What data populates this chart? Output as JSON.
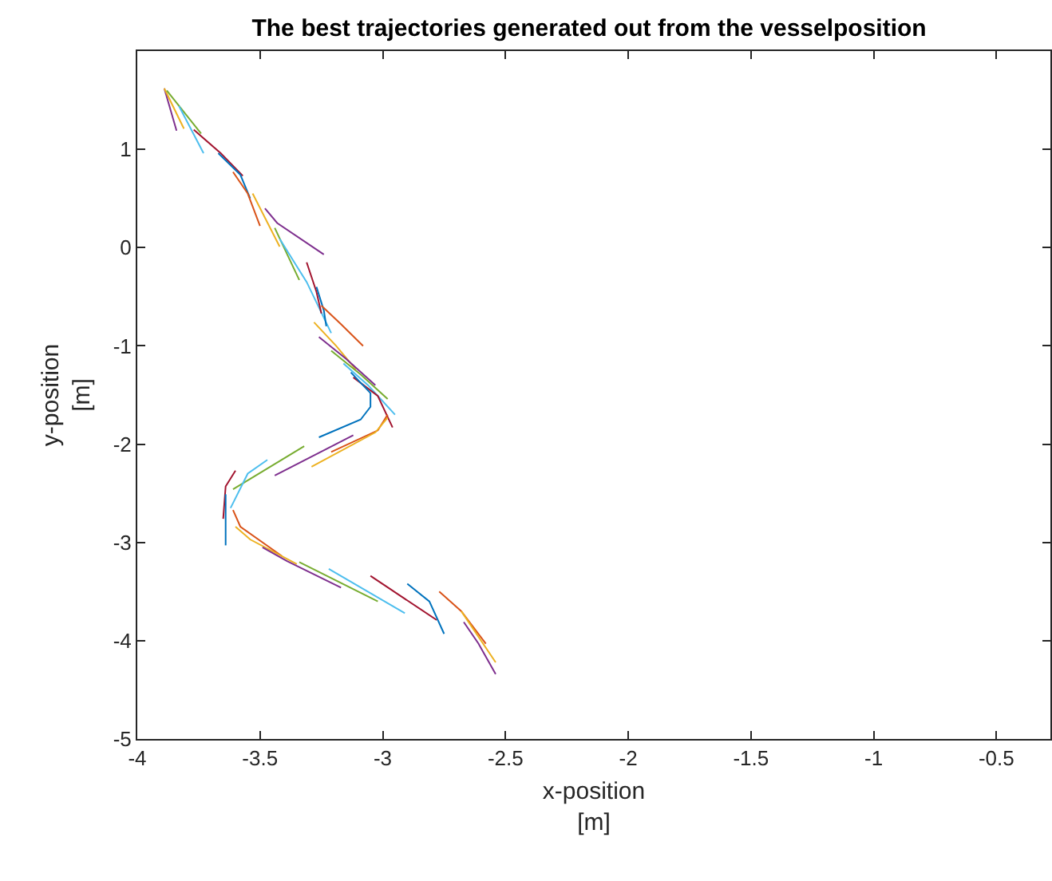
{
  "chart_data": {
    "type": "line",
    "title": "The best trajectories generated out from the vesselposition",
    "xlabel": "x-position\n[m]",
    "ylabel": "y-position\n[m]",
    "xlim": [
      -4,
      -0.28
    ],
    "ylim": [
      -5,
      2
    ],
    "xticks": [
      -4,
      -3.5,
      -3,
      -2.5,
      -2,
      -1.5,
      -1,
      -0.5
    ],
    "yticks": [
      -5,
      -4,
      -3,
      -2,
      -1,
      0,
      1
    ],
    "grid": false,
    "series": [
      {
        "color": "#7e2f8e",
        "x": [
          -3.89,
          -3.84
        ],
        "values": [
          1.62,
          1.19
        ]
      },
      {
        "color": "#edb120",
        "x": [
          -3.89,
          -3.81
        ],
        "values": [
          1.62,
          1.21
        ]
      },
      {
        "color": "#77ac30",
        "x": [
          -3.88,
          -3.74
        ],
        "values": [
          1.6,
          1.16
        ]
      },
      {
        "color": "#4dbeee",
        "x": [
          -3.83,
          -3.73
        ],
        "values": [
          1.44,
          0.96
        ]
      },
      {
        "color": "#a2142f",
        "x": [
          -3.77,
          -3.66,
          -3.57
        ],
        "values": [
          1.2,
          0.96,
          0.73
        ]
      },
      {
        "color": "#0072bd",
        "x": [
          -3.67,
          -3.58,
          -3.54
        ],
        "values": [
          0.96,
          0.74,
          0.5
        ]
      },
      {
        "color": "#d95319",
        "x": [
          -3.61,
          -3.55,
          -3.5
        ],
        "values": [
          0.77,
          0.55,
          0.22
        ]
      },
      {
        "color": "#edb120",
        "x": [
          -3.53,
          -3.42
        ],
        "values": [
          0.55,
          0.01
        ]
      },
      {
        "color": "#7e2f8e",
        "x": [
          -3.48,
          -3.43,
          -3.24
        ],
        "values": [
          0.4,
          0.25,
          -0.07
        ]
      },
      {
        "color": "#77ac30",
        "x": [
          -3.44,
          -3.34
        ],
        "values": [
          0.2,
          -0.33
        ]
      },
      {
        "color": "#4dbeee",
        "x": [
          -3.42,
          -3.31,
          -3.21
        ],
        "values": [
          0.09,
          -0.35,
          -0.87
        ]
      },
      {
        "color": "#a2142f",
        "x": [
          -3.31,
          -3.27,
          -3.25
        ],
        "values": [
          -0.15,
          -0.45,
          -0.67
        ]
      },
      {
        "color": "#0072bd",
        "x": [
          -3.27,
          -3.24,
          -3.23
        ],
        "values": [
          -0.4,
          -0.64,
          -0.8
        ]
      },
      {
        "color": "#d95319",
        "x": [
          -3.25,
          -3.17,
          -3.08
        ],
        "values": [
          -0.59,
          -0.78,
          -1.0
        ]
      },
      {
        "color": "#edb120",
        "x": [
          -3.28,
          -3.19,
          -3.11
        ],
        "values": [
          -0.76,
          -1.0,
          -1.24
        ]
      },
      {
        "color": "#7e2f8e",
        "x": [
          -3.26,
          -3.15,
          -3.03
        ],
        "values": [
          -0.91,
          -1.13,
          -1.4
        ]
      },
      {
        "color": "#77ac30",
        "x": [
          -3.21,
          -3.09,
          -2.98
        ],
        "values": [
          -1.05,
          -1.29,
          -1.54
        ]
      },
      {
        "color": "#4dbeee",
        "x": [
          -3.16,
          -3.06,
          -2.95
        ],
        "values": [
          -1.18,
          -1.4,
          -1.7
        ]
      },
      {
        "color": "#a2142f",
        "x": [
          -3.12,
          -3.02,
          -2.96
        ],
        "values": [
          -1.32,
          -1.51,
          -1.83
        ]
      },
      {
        "color": "#0072bd",
        "x": [
          -3.13,
          -3.05,
          -3.05,
          -3.09,
          -3.26
        ],
        "values": [
          -1.27,
          -1.48,
          -1.62,
          -1.75,
          -1.93
        ]
      },
      {
        "color": "#d95319",
        "x": [
          -2.98,
          -3.02,
          -3.21
        ],
        "values": [
          -1.7,
          -1.86,
          -2.08
        ]
      },
      {
        "color": "#edb120",
        "x": [
          -2.98,
          -3.03,
          -3.29
        ],
        "values": [
          -1.73,
          -1.88,
          -2.23
        ]
      },
      {
        "color": "#7e2f8e",
        "x": [
          -3.12,
          -3.44
        ],
        "values": [
          -1.91,
          -2.32
        ]
      },
      {
        "color": "#77ac30",
        "x": [
          -3.32,
          -3.61
        ],
        "values": [
          -2.02,
          -2.46
        ]
      },
      {
        "color": "#4dbeee",
        "x": [
          -3.47,
          -3.55,
          -3.62
        ],
        "values": [
          -2.16,
          -2.3,
          -2.65
        ]
      },
      {
        "color": "#a2142f",
        "x": [
          -3.6,
          -3.64,
          -3.65
        ],
        "values": [
          -2.27,
          -2.43,
          -2.76
        ]
      },
      {
        "color": "#0072bd",
        "x": [
          -3.64,
          -3.64
        ],
        "values": [
          -2.51,
          -3.03
        ]
      },
      {
        "color": "#d95319",
        "x": [
          -3.61,
          -3.58,
          -3.41
        ],
        "values": [
          -2.67,
          -2.84,
          -3.14
        ]
      },
      {
        "color": "#edb120",
        "x": [
          -3.6,
          -3.54,
          -3.35
        ],
        "values": [
          -2.84,
          -2.97,
          -3.22
        ]
      },
      {
        "color": "#7e2f8e",
        "x": [
          -3.49,
          -3.39,
          -3.17
        ],
        "values": [
          -3.05,
          -3.19,
          -3.46
        ]
      },
      {
        "color": "#77ac30",
        "x": [
          -3.34,
          -3.02
        ],
        "values": [
          -3.2,
          -3.6
        ]
      },
      {
        "color": "#4dbeee",
        "x": [
          -3.22,
          -2.91
        ],
        "values": [
          -3.27,
          -3.72
        ]
      },
      {
        "color": "#a2142f",
        "x": [
          -3.05,
          -2.78
        ],
        "values": [
          -3.34,
          -3.79
        ]
      },
      {
        "color": "#0072bd",
        "x": [
          -2.9,
          -2.81,
          -2.75
        ],
        "values": [
          -3.42,
          -3.6,
          -3.93
        ]
      },
      {
        "color": "#d95319",
        "x": [
          -2.77,
          -2.68,
          -2.58
        ],
        "values": [
          -3.5,
          -3.7,
          -4.03
        ]
      },
      {
        "color": "#edb120",
        "x": [
          -2.68,
          -2.54
        ],
        "values": [
          -3.7,
          -4.22
        ]
      },
      {
        "color": "#7e2f8e",
        "x": [
          -2.67,
          -2.61,
          -2.54
        ],
        "values": [
          -3.81,
          -4.03,
          -4.34
        ]
      }
    ]
  }
}
